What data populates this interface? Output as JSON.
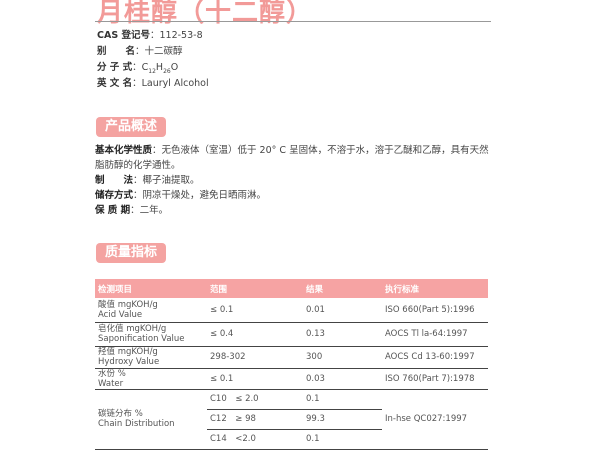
{
  "title": "月桂醇（十二醇）",
  "info": [
    {
      "label": "CAS 登记号",
      "value": "112-53-8"
    },
    {
      "label": "别　　名",
      "value": "十二碳醇"
    },
    {
      "label": "分 子 式",
      "value": "C12H26O"
    },
    {
      "label": "英 文 名",
      "value": "Lauryl Alcohol"
    }
  ],
  "sections": {
    "overview": "产品概述",
    "quality": "质量指标"
  },
  "overview": [
    {
      "label": "基本化学性质",
      "value": "无色液体（室温）低于 20° C 呈固体，不溶于水，溶于乙醚和乙醇，具有天然脂肪醇的化学通性。"
    },
    {
      "label": "制　　法",
      "value": "椰子油提取。"
    },
    {
      "label": "储存方式",
      "value": "阴凉干燥处，避免日晒雨淋。"
    },
    {
      "label": "保 质 期",
      "value": "二年。"
    }
  ],
  "table": {
    "headers": [
      "检测项目",
      "范围",
      "结果",
      "执行标准"
    ],
    "rows": [
      {
        "cn": "酸值 mgKOH/g",
        "en": "Acid Value",
        "range": "≤ 0.1",
        "result": "0.01",
        "std": "ISO 660(Part 5):1996"
      },
      {
        "cn": "皂化值 mgKOH/g",
        "en": "Saponification Value",
        "range": "≤ 0.4",
        "result": "0.13",
        "std": "AOCS  Tl la-64:1997"
      },
      {
        "cn": "羟值 mgKOH/g",
        "en": "Hydroxy Value",
        "range": "298-302",
        "result": "300",
        "std": "AOCS Cd 13-60:1997"
      },
      {
        "cn": "水份 %",
        "en": "Water",
        "range": "≤ 0.1",
        "result": "0.03",
        "std": "ISO 760(Part 7):1978"
      }
    ],
    "chain": {
      "cn": "碳链分布 %",
      "en": "Chain Distribution",
      "std": "In-hse QC027:1997",
      "subs": [
        {
          "range": "C10　≤ 2.0",
          "result": "0.1"
        },
        {
          "range": "C12　≥ 98",
          "result": "99.3"
        },
        {
          "range": "C14　<2.0",
          "result": "0.1"
        }
      ]
    }
  }
}
